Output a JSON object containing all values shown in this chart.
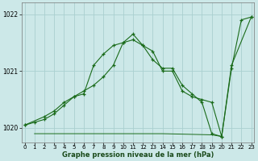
{
  "xlabel": "Graphe pression niveau de la mer (hPa)",
  "bg_color": "#cce8e8",
  "grid_color": "#aad0d0",
  "line_color": "#1a6b1a",
  "line1_x": [
    0,
    1,
    2,
    3,
    4,
    5,
    6,
    7,
    8,
    9,
    10,
    11,
    12,
    13,
    14,
    15,
    16,
    17,
    18,
    19,
    20,
    21,
    22,
    23
  ],
  "line1_y": [
    1020.05,
    1020.1,
    1020.15,
    1020.25,
    1020.4,
    1020.55,
    1020.65,
    1020.75,
    1020.9,
    1021.1,
    1021.5,
    1021.65,
    1021.45,
    1021.2,
    1021.05,
    1021.05,
    1020.75,
    1020.6,
    1020.45,
    1019.9,
    1019.85,
    1021.05,
    1021.9,
    1021.95
  ],
  "line2_x": [
    0,
    2,
    3,
    4,
    5,
    6,
    7,
    8,
    9,
    10,
    11,
    12,
    13,
    14,
    15,
    16,
    17,
    18,
    19,
    20,
    21,
    23
  ],
  "line2_y": [
    1020.05,
    1020.2,
    1020.3,
    1020.45,
    1020.55,
    1020.6,
    1021.1,
    1021.3,
    1021.45,
    1021.5,
    1021.55,
    1021.45,
    1021.35,
    1021.0,
    1021.0,
    1020.65,
    1020.55,
    1020.5,
    1020.45,
    1019.85,
    1021.1,
    1021.95
  ],
  "line3_x": [
    1,
    5,
    10,
    14,
    19,
    20
  ],
  "line3_y": [
    1019.9,
    1019.9,
    1019.9,
    1019.9,
    1019.88,
    1019.85
  ],
  "ylim_min": 1019.75,
  "ylim_max": 1022.2,
  "yticks": [
    1020,
    1021,
    1022
  ],
  "xticks": [
    0,
    1,
    2,
    3,
    4,
    5,
    6,
    7,
    8,
    9,
    10,
    11,
    12,
    13,
    14,
    15,
    16,
    17,
    18,
    19,
    20,
    21,
    22,
    23
  ]
}
